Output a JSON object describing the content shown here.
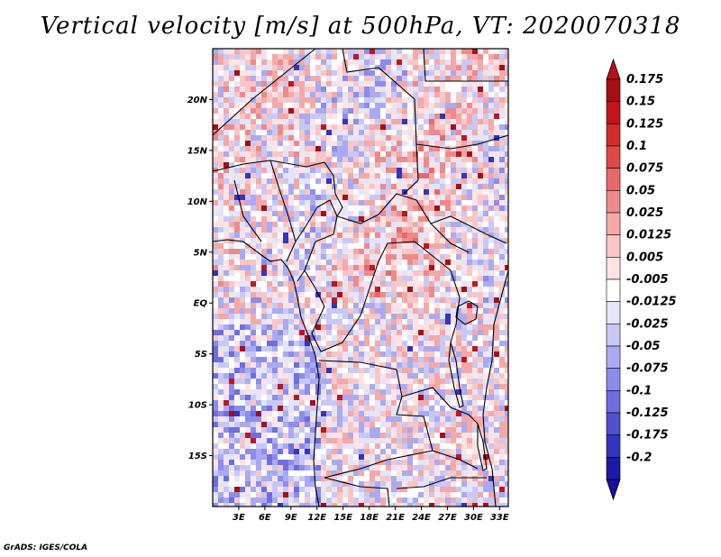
{
  "title": "Vertical velocity [m/s] at 500hPa, VT: 2020070318",
  "footer": "GrADS: IGES/COLA",
  "map": {
    "lon_range": [
      0,
      34
    ],
    "lat_range": [
      -20,
      25
    ],
    "lat_ticks": [
      {
        "value": 20,
        "label": "20N"
      },
      {
        "value": 15,
        "label": "15N"
      },
      {
        "value": 10,
        "label": "10N"
      },
      {
        "value": 5,
        "label": "5N"
      },
      {
        "value": 0,
        "label": "EQ"
      },
      {
        "value": -5,
        "label": "5S"
      },
      {
        "value": -10,
        "label": "10S"
      },
      {
        "value": -15,
        "label": "15S"
      }
    ],
    "lon_ticks": [
      {
        "value": 3,
        "label": "3E"
      },
      {
        "value": 6,
        "label": "6E"
      },
      {
        "value": 9,
        "label": "9E"
      },
      {
        "value": 12,
        "label": "12E"
      },
      {
        "value": 15,
        "label": "15E"
      },
      {
        "value": 18,
        "label": "18E"
      },
      {
        "value": 21,
        "label": "21E"
      },
      {
        "value": 24,
        "label": "24E"
      },
      {
        "value": 27,
        "label": "27E"
      },
      {
        "value": 30,
        "label": "30E"
      },
      {
        "value": 33,
        "label": "33E"
      }
    ]
  },
  "colorbar": {
    "levels": [
      {
        "label": "0.175",
        "color": "#a50f15"
      },
      {
        "label": "0.15",
        "color": "#c0151c"
      },
      {
        "label": "0.125",
        "color": "#d42c2c"
      },
      {
        "label": "0.1",
        "color": "#e04848"
      },
      {
        "label": "0.075",
        "color": "#e66a6a"
      },
      {
        "label": "0.05",
        "color": "#ee8a8a"
      },
      {
        "label": "0.025",
        "color": "#f4a8a8"
      },
      {
        "label": "0.0125",
        "color": "#f9c6c6"
      },
      {
        "label": "0.005",
        "color": "#fde4e4"
      },
      {
        "label": "-0.005",
        "color": "#ffffff"
      },
      {
        "label": "-0.0125",
        "color": "#e4e4fb"
      },
      {
        "label": "-0.025",
        "color": "#c8c8f7"
      },
      {
        "label": "-0.05",
        "color": "#aaaaf2"
      },
      {
        "label": "-0.075",
        "color": "#8c8cec"
      },
      {
        "label": "-0.1",
        "color": "#6e6ee0"
      },
      {
        "label": "-0.125",
        "color": "#5050d0"
      },
      {
        "label": "-0.175",
        "color": "#3434bc"
      },
      {
        "label": "-0.2",
        "color": "#1a1aa6"
      }
    ],
    "top_arrow_color": "#b8101a",
    "bottom_arrow_color": "#1a0f9e"
  }
}
